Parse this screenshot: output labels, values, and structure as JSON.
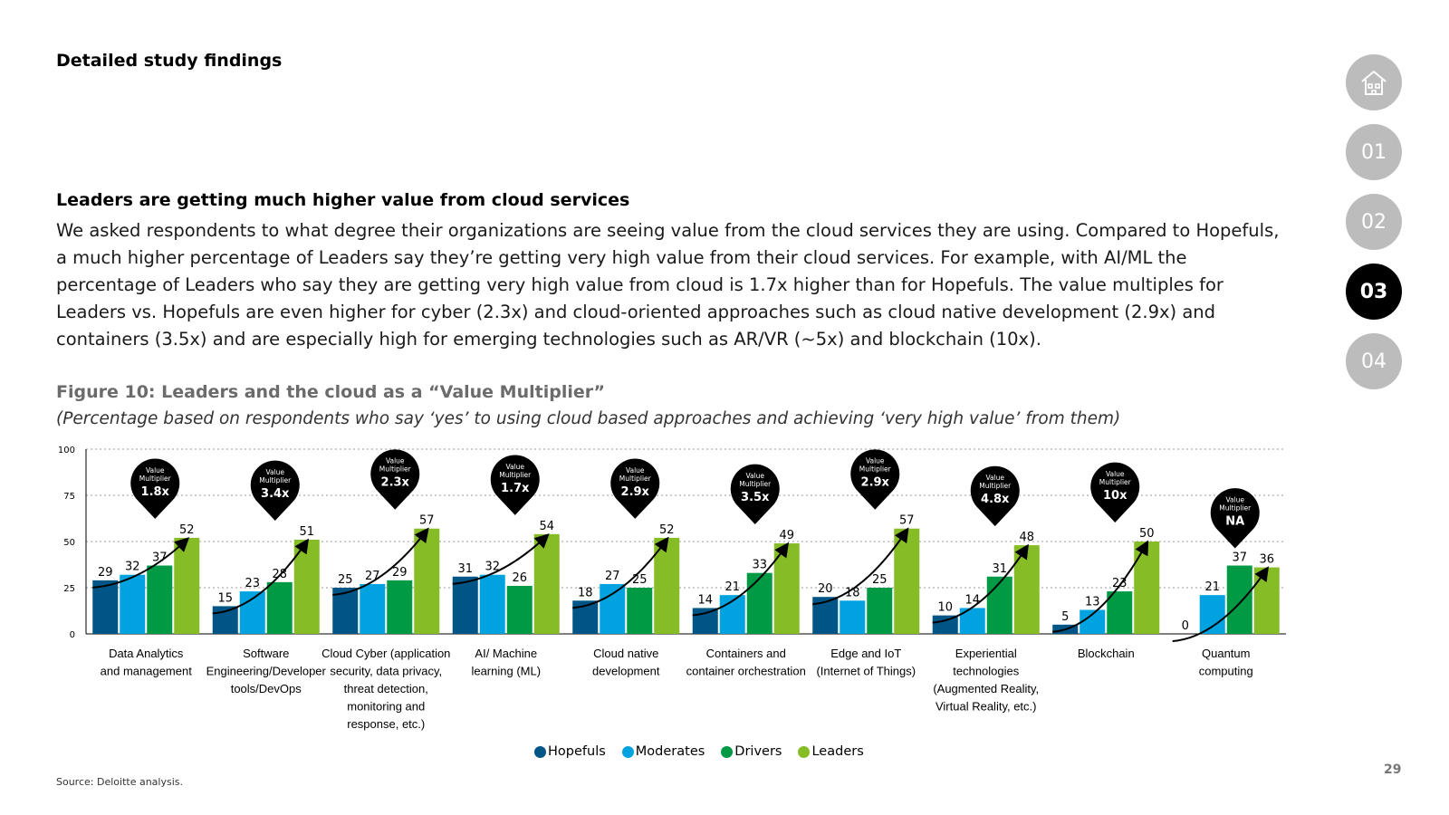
{
  "section_label": "Detailed study findings",
  "nav": {
    "home_icon": "home-icon",
    "items": [
      {
        "label": "01",
        "active": false
      },
      {
        "label": "02",
        "active": false
      },
      {
        "label": "03",
        "active": true
      },
      {
        "label": "04",
        "active": false
      }
    ]
  },
  "headline": "Leaders are getting much higher value from cloud services",
  "body": "We asked respondents to what degree their organizations are seeing value from the cloud services they are using. Compared to Hopefuls, a much higher percentage of Leaders say they’re getting very high value from their cloud services. For example, with AI/ML the percentage of Leaders who say they are getting very high value from cloud is 1.7x higher than for Hopefuls. The value multiples for Leaders vs. Hopefuls are even higher for cyber (2.3x) and cloud-oriented approaches such as cloud native development (2.9x) and containers (3.5x) and are especially high for emerging technologies such as AR/VR (~5x) and blockchain (10x).",
  "figure": {
    "title": "Figure 10: Leaders and the cloud as a “Value Multiplier”",
    "subtitle": "(Percentage based on respondents who say ‘yes’ to using cloud based approaches and achieving ‘very high value’ from them)"
  },
  "chart_data": {
    "type": "bar",
    "ylim": [
      0,
      100
    ],
    "yticks": [
      0,
      25,
      50,
      75,
      100
    ],
    "grid": true,
    "legend_position": "bottom",
    "categories": [
      [
        "Data Analytics",
        "and management"
      ],
      [
        "Software",
        "Engineering/Developer",
        "tools/DevOps"
      ],
      [
        "Cloud Cyber (application",
        "security, data privacy,",
        "threat detection,",
        "monitoring and",
        "response, etc.)"
      ],
      [
        "AI/ Machine",
        "learning (ML)"
      ],
      [
        "Cloud native",
        "development"
      ],
      [
        "Containers and",
        "container orchestration"
      ],
      [
        "Edge and IoT",
        "(Internet of Things)"
      ],
      [
        "Experiential",
        "technologies",
        "(Augmented Reality,",
        "Virtual Reality, etc.)"
      ],
      [
        "Blockchain"
      ],
      [
        "Quantum",
        "computing"
      ]
    ],
    "series": [
      {
        "name": "Hopefuls",
        "color": "#005587",
        "values": [
          29,
          15,
          25,
          31,
          18,
          14,
          20,
          10,
          5,
          0
        ]
      },
      {
        "name": "Moderates",
        "color": "#00A3E0",
        "values": [
          32,
          23,
          27,
          32,
          27,
          21,
          18,
          14,
          13,
          21
        ]
      },
      {
        "name": "Drivers",
        "color": "#009A44",
        "values": [
          37,
          28,
          29,
          26,
          25,
          33,
          25,
          31,
          23,
          37
        ]
      },
      {
        "name": "Leaders",
        "color": "#86BC25",
        "values": [
          52,
          51,
          57,
          54,
          52,
          49,
          57,
          48,
          50,
          36
        ]
      }
    ],
    "multiplier_label": [
      "Value",
      "Multiplier"
    ],
    "multipliers": [
      "1.8x",
      "3.4x",
      "2.3x",
      "1.7x",
      "2.9x",
      "3.5x",
      "2.9x",
      "4.8x",
      "10x",
      "NA"
    ]
  },
  "source": "Source: Deloitte analysis.",
  "page_number": "29"
}
